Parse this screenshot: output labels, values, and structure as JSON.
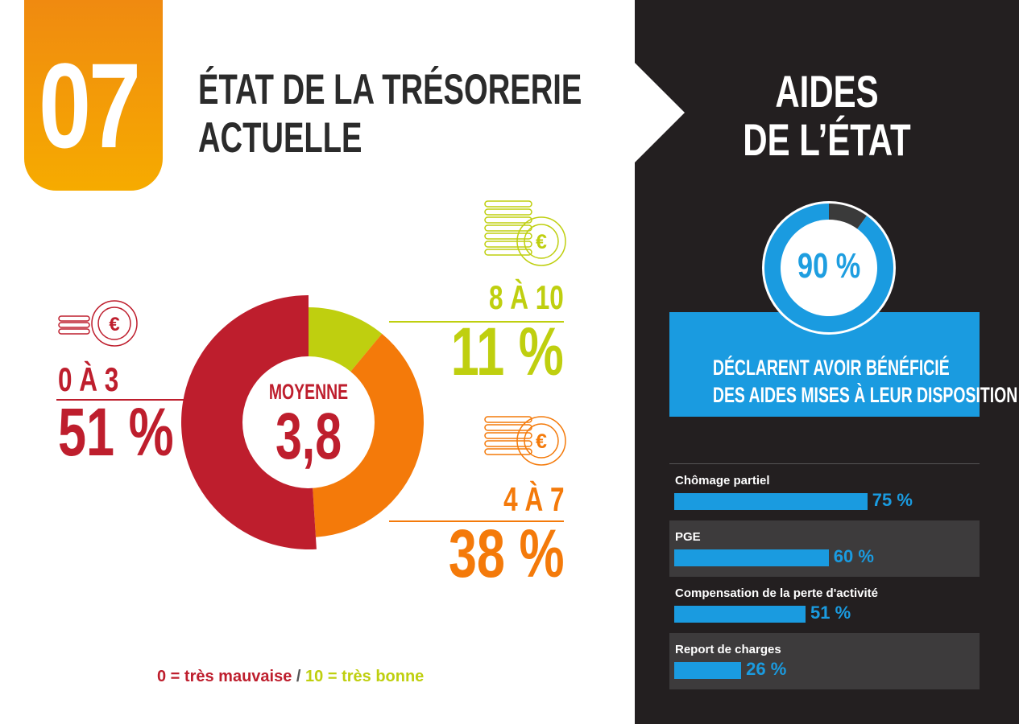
{
  "header": {
    "section_number": "07",
    "title_line1": "ÉTAT DE LA TRÉSORERIE",
    "title_line2": "ACTUELLE"
  },
  "colors": {
    "orange": "#f47a0a",
    "red": "#be1e2d",
    "green": "#bfcf0f",
    "blue": "#1a9be0",
    "dark": "#231f20"
  },
  "chart_data": [
    {
      "type": "pie",
      "categories": [
        "0 À 3",
        "4 À 7",
        "8 À 10"
      ],
      "values": [
        51,
        38,
        11
      ],
      "value_labels": [
        "51 %",
        "38 %",
        "11 %"
      ],
      "center_label": "MOYENNE",
      "center_value": "3,8",
      "note_left": "0 = très mauvaise",
      "note_separator": "/",
      "note_right": "10 = très bonne"
    },
    {
      "type": "pie",
      "title": "AIDES DE L'ÉTAT",
      "values": [
        90,
        10
      ],
      "center_label": "90 %",
      "caption_line1": "DÉCLARENT AVOIR BÉNÉFICIÉ",
      "caption_line2": "DES AIDES MISES À LEUR DISPOSITION"
    },
    {
      "type": "bar",
      "categories": [
        "Chômage partiel",
        "PGE",
        "Compensation de la perte d'activité",
        "Report de charges"
      ],
      "values": [
        75,
        60,
        51,
        26
      ],
      "value_labels": [
        "75 %",
        "60 %",
        "51 %",
        "26 %"
      ]
    }
  ],
  "right_panel": {
    "title_line1": "AIDES",
    "title_line2": "DE L’ÉTAT"
  },
  "icons": [
    "coin-stack-euro-icon"
  ]
}
